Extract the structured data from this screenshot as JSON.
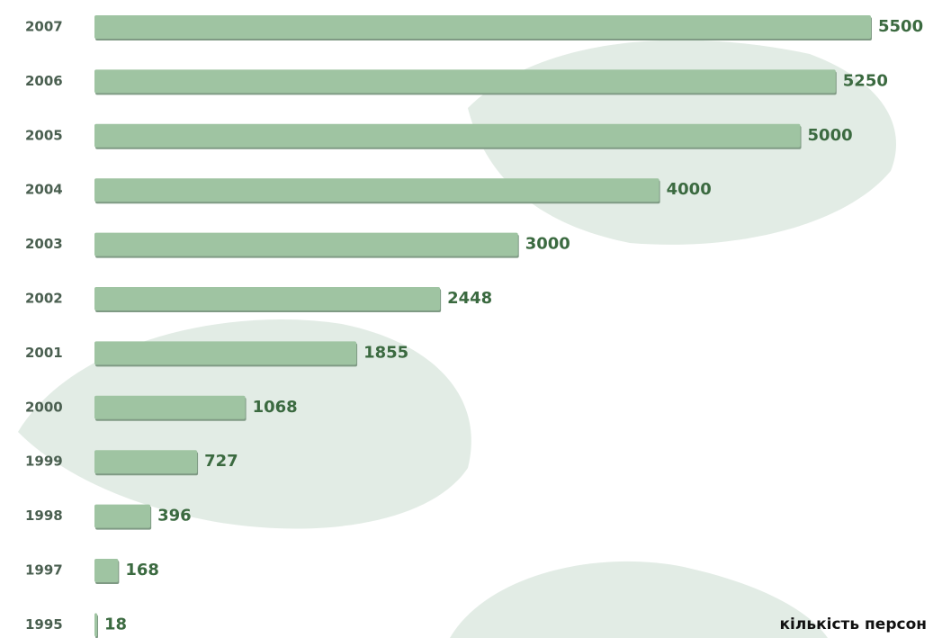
{
  "chart_data": {
    "type": "hbar",
    "categories": [
      "2007",
      "2006",
      "2005",
      "2004",
      "2003",
      "2002",
      "2001",
      "2000",
      "1999",
      "1998",
      "1997",
      "1995"
    ],
    "values": [
      5500,
      5250,
      5000,
      4000,
      3000,
      2448,
      1855,
      1068,
      727,
      396,
      168,
      18
    ],
    "color": "#9fc4a2",
    "xlim": [
      0,
      5500
    ],
    "x_label": "кількість персон"
  }
}
